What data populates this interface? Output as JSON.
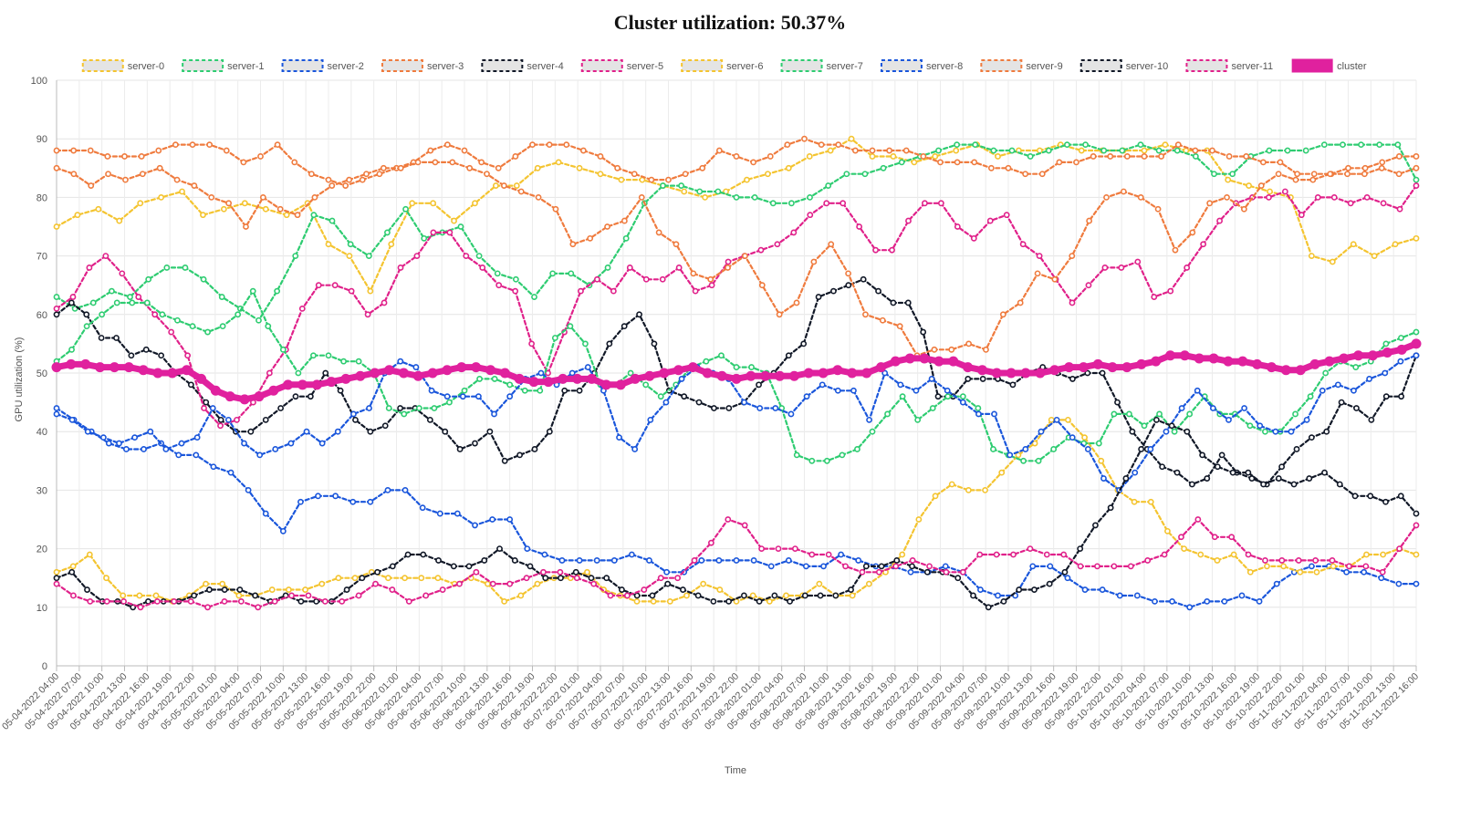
{
  "chart_data": {
    "type": "line",
    "title": "Cluster utilization: 50.37%",
    "xlabel": "Time",
    "ylabel": "GPU utilization (%)",
    "ylim": [
      0,
      100
    ],
    "yticks": [
      0,
      10,
      20,
      30,
      40,
      50,
      60,
      70,
      80,
      90,
      100
    ],
    "grid": true,
    "legend_position": "top",
    "x_tick_labels": [
      "05-04-2022 04:00",
      "05-04-2022 07:00",
      "05-04-2022 10:00",
      "05-04-2022 13:00",
      "05-04-2022 16:00",
      "05-04-2022 19:00",
      "05-04-2022 22:00",
      "05-05-2022 01:00",
      "05-05-2022 04:00",
      "05-05-2022 07:00",
      "05-05-2022 10:00",
      "05-05-2022 13:00",
      "05-05-2022 16:00",
      "05-05-2022 19:00",
      "05-05-2022 22:00",
      "05-06-2022 01:00",
      "05-06-2022 04:00",
      "05-06-2022 07:00",
      "05-06-2022 10:00",
      "05-06-2022 13:00",
      "05-06-2022 16:00",
      "05-06-2022 19:00",
      "05-06-2022 22:00",
      "05-07-2022 01:00",
      "05-07-2022 04:00",
      "05-07-2022 07:00",
      "05-07-2022 10:00",
      "05-07-2022 13:00",
      "05-07-2022 16:00",
      "05-07-2022 19:00",
      "05-07-2022 22:00",
      "05-08-2022 01:00",
      "05-08-2022 04:00",
      "05-08-2022 07:00",
      "05-08-2022 10:00",
      "05-08-2022 13:00",
      "05-08-2022 16:00",
      "05-08-2022 19:00",
      "05-08-2022 22:00",
      "05-09-2022 01:00",
      "05-09-2022 04:00",
      "05-09-2022 07:00",
      "05-09-2022 10:00",
      "05-09-2022 13:00",
      "05-09-2022 16:00",
      "05-09-2022 19:00",
      "05-09-2022 22:00",
      "05-10-2022 01:00",
      "05-10-2022 04:00",
      "05-10-2022 07:00",
      "05-10-2022 10:00",
      "05-10-2022 13:00",
      "05-10-2022 16:00",
      "05-10-2022 19:00",
      "05-10-2022 22:00",
      "05-11-2022 01:00",
      "05-11-2022 04:00",
      "05-11-2022 07:00",
      "05-11-2022 10:00",
      "05-11-2022 13:00",
      "05-11-2022 16:00"
    ],
    "series": [
      {
        "name": "server-0",
        "color": "#f4c430",
        "values": [
          75,
          77,
          78,
          76,
          79,
          80,
          81,
          77,
          78,
          79,
          78,
          77,
          79,
          72,
          70,
          64,
          72,
          79,
          79,
          76,
          79,
          82,
          82,
          85,
          86,
          85,
          84,
          83,
          83,
          82,
          81,
          80,
          81,
          83,
          84,
          85,
          87,
          88,
          90,
          87,
          87,
          86,
          87,
          88,
          89,
          87,
          88,
          88,
          89,
          88,
          88,
          88,
          88,
          89,
          88,
          88,
          83,
          82,
          81,
          80,
          70,
          69,
          72,
          70,
          72,
          73
        ]
      },
      {
        "name": "server-1",
        "color": "#2ecc71",
        "values": [
          63,
          61,
          62,
          64,
          63,
          66,
          68,
          68,
          66,
          63,
          61,
          59,
          64,
          70,
          77,
          76,
          72,
          70,
          74,
          78,
          73,
          74,
          75,
          70,
          67,
          66,
          63,
          67,
          67,
          65,
          68,
          73,
          79,
          82,
          82,
          81,
          81,
          80,
          80,
          79,
          79,
          80,
          82,
          84,
          84,
          85,
          86,
          87,
          88,
          89,
          89,
          88,
          88,
          87,
          88,
          89,
          89,
          88,
          88,
          89,
          88,
          88,
          87,
          84,
          84,
          87,
          88,
          88,
          88,
          89,
          89,
          89,
          89,
          89,
          83
        ]
      },
      {
        "name": "server-2",
        "color": "#1a56db",
        "values": [
          44,
          42,
          40,
          38,
          37,
          37,
          38,
          36,
          36,
          34,
          33,
          30,
          26,
          23,
          28,
          29,
          29,
          28,
          28,
          30,
          30,
          27,
          26,
          26,
          24,
          25,
          25,
          20,
          19,
          18,
          18,
          18,
          18,
          19,
          18,
          16,
          16,
          18,
          18,
          18,
          18,
          17,
          18,
          17,
          17,
          19,
          18,
          17,
          17,
          16,
          16,
          17,
          16,
          13,
          12,
          12,
          17,
          17,
          15,
          13,
          13,
          12,
          12,
          11,
          11,
          10,
          11,
          11,
          12,
          11,
          14,
          16,
          17,
          17,
          16,
          16,
          15,
          14,
          14
        ]
      },
      {
        "name": "server-3",
        "color": "#ef7b3e",
        "values": [
          88,
          88,
          88,
          87,
          87,
          87,
          88,
          89,
          89,
          89,
          88,
          86,
          87,
          89,
          86,
          84,
          83,
          82,
          83,
          84,
          85,
          86,
          88,
          89,
          88,
          86,
          85,
          87,
          89,
          89,
          89,
          88,
          87,
          85,
          84,
          83,
          83,
          84,
          85,
          88,
          87,
          86,
          87,
          89,
          90,
          89,
          89,
          88,
          88,
          88,
          88,
          87,
          86,
          86,
          86,
          85,
          85,
          84,
          84,
          86,
          86,
          87,
          87,
          87,
          87,
          87,
          89,
          88,
          88,
          87,
          87,
          86,
          86,
          84,
          84,
          84,
          85,
          85,
          86,
          87,
          87
        ]
      },
      {
        "name": "server-4",
        "color": "#111827",
        "values": [
          60,
          62,
          60,
          56,
          56,
          53,
          54,
          53,
          50,
          48,
          45,
          42,
          40,
          40,
          42,
          44,
          46,
          46,
          50,
          47,
          42,
          40,
          41,
          44,
          44,
          42,
          40,
          37,
          38,
          40,
          35,
          36,
          37,
          40,
          47,
          47,
          50,
          55,
          58,
          60,
          55,
          47,
          46,
          45,
          44,
          44,
          45,
          48,
          50,
          53,
          55,
          63,
          64,
          65,
          66,
          64,
          62,
          62,
          57,
          46,
          46,
          49,
          49,
          49,
          48,
          50,
          51,
          50,
          49,
          50,
          50,
          45,
          40,
          37,
          34,
          33,
          31,
          32,
          36,
          33,
          32,
          31,
          34,
          37,
          39,
          40,
          45,
          44,
          42,
          46,
          46,
          53
        ]
      },
      {
        "name": "server-5",
        "color": "#e0218a",
        "values": [
          61,
          63,
          68,
          70,
          67,
          63,
          60,
          57,
          53,
          44,
          41,
          42,
          45,
          50,
          54,
          61,
          65,
          65,
          64,
          60,
          62,
          68,
          70,
          74,
          74,
          70,
          68,
          65,
          64,
          55,
          50,
          57,
          64,
          66,
          64,
          68,
          66,
          66,
          68,
          64,
          65,
          69,
          70,
          71,
          72,
          74,
          77,
          79,
          79,
          75,
          71,
          71,
          76,
          79,
          79,
          75,
          73,
          76,
          77,
          72,
          70,
          66,
          62,
          65,
          68,
          68,
          69,
          63,
          64,
          68,
          72,
          76,
          79,
          80,
          80,
          81,
          77,
          80,
          80,
          79,
          80,
          79,
          78,
          82
        ]
      },
      {
        "name": "server-6",
        "color": "#f4c430",
        "values": [
          16,
          17,
          19,
          15,
          12,
          12,
          12,
          11,
          12,
          14,
          14,
          12,
          12,
          13,
          13,
          13,
          14,
          15,
          15,
          16,
          15,
          15,
          15,
          15,
          14,
          15,
          14,
          11,
          12,
          14,
          15,
          15,
          16,
          13,
          12,
          11,
          11,
          11,
          12,
          14,
          13,
          11,
          12,
          11,
          12,
          12,
          14,
          12,
          12,
          14,
          16,
          19,
          25,
          29,
          31,
          30,
          30,
          33,
          36,
          38,
          42,
          42,
          39,
          35,
          30,
          28,
          28,
          23,
          20,
          19,
          18,
          19,
          16,
          17,
          17,
          16,
          16,
          17,
          17,
          19,
          19,
          20,
          19
        ]
      },
      {
        "name": "server-7",
        "color": "#2ecc71",
        "values": [
          52,
          54,
          58,
          60,
          62,
          62,
          62,
          60,
          59,
          58,
          57,
          58,
          60,
          64,
          58,
          54,
          50,
          53,
          53,
          52,
          52,
          50,
          44,
          43,
          44,
          44,
          45,
          47,
          49,
          49,
          48,
          47,
          47,
          56,
          58,
          55,
          48,
          48,
          50,
          48,
          46,
          48,
          51,
          52,
          53,
          51,
          51,
          50,
          44,
          36,
          35,
          35,
          36,
          37,
          40,
          43,
          46,
          42,
          44,
          46,
          46,
          44,
          37,
          36,
          35,
          35,
          37,
          39,
          38,
          38,
          43,
          43,
          41,
          43,
          40,
          43,
          46,
          43,
          43,
          41,
          40,
          40,
          43,
          46,
          50,
          52,
          51,
          52,
          55,
          56,
          57
        ]
      },
      {
        "name": "server-8",
        "color": "#1a56db",
        "values": [
          43,
          42,
          40,
          39,
          38,
          39,
          40,
          37,
          38,
          39,
          44,
          42,
          38,
          36,
          37,
          38,
          40,
          38,
          40,
          43,
          44,
          50,
          52,
          51,
          47,
          46,
          46,
          46,
          43,
          46,
          49,
          50,
          48,
          50,
          51,
          47,
          39,
          37,
          42,
          45,
          49,
          51,
          50,
          49,
          45,
          44,
          44,
          43,
          46,
          48,
          47,
          47,
          42,
          50,
          48,
          47,
          49,
          47,
          45,
          43,
          43,
          36,
          37,
          40,
          42,
          39,
          37,
          32,
          30,
          33,
          37,
          40,
          44,
          47,
          44,
          42,
          44,
          41,
          40,
          40,
          42,
          47,
          48,
          47,
          49,
          50,
          52,
          53
        ]
      },
      {
        "name": "server-9",
        "color": "#ef7b3e",
        "values": [
          85,
          84,
          82,
          84,
          83,
          84,
          85,
          83,
          82,
          80,
          79,
          75,
          80,
          78,
          77,
          80,
          82,
          83,
          84,
          85,
          85,
          86,
          86,
          86,
          85,
          84,
          82,
          81,
          80,
          78,
          72,
          73,
          75,
          76,
          80,
          74,
          72,
          67,
          66,
          68,
          70,
          65,
          60,
          62,
          69,
          72,
          67,
          60,
          59,
          58,
          53,
          54,
          54,
          55,
          54,
          60,
          62,
          67,
          66,
          70,
          76,
          80,
          81,
          80,
          78,
          71,
          74,
          79,
          80,
          78,
          82,
          84,
          83,
          83,
          84,
          84,
          84,
          85,
          84,
          85
        ]
      },
      {
        "name": "server-10",
        "color": "#111827",
        "values": [
          15,
          16,
          13,
          11,
          11,
          10,
          11,
          11,
          11,
          12,
          13,
          13,
          13,
          12,
          11,
          12,
          11,
          11,
          11,
          13,
          15,
          16,
          17,
          19,
          19,
          18,
          17,
          17,
          18,
          20,
          18,
          17,
          15,
          15,
          16,
          15,
          15,
          13,
          12,
          12,
          14,
          13,
          12,
          11,
          11,
          12,
          11,
          12,
          11,
          12,
          12,
          12,
          13,
          17,
          17,
          18,
          17,
          16,
          16,
          15,
          12,
          10,
          11,
          13,
          13,
          14,
          16,
          20,
          24,
          27,
          32,
          37,
          42,
          41,
          40,
          36,
          34,
          33,
          33,
          31,
          32,
          31,
          32,
          33,
          31,
          29,
          29,
          28,
          29,
          26
        ]
      },
      {
        "name": "server-11",
        "color": "#e0218a",
        "values": [
          14,
          12,
          11,
          11,
          11,
          10,
          11,
          11,
          11,
          10,
          11,
          11,
          10,
          11,
          12,
          12,
          11,
          11,
          12,
          14,
          13,
          11,
          12,
          13,
          14,
          16,
          14,
          14,
          15,
          16,
          16,
          15,
          14,
          12,
          12,
          13,
          15,
          15,
          18,
          21,
          25,
          24,
          20,
          20,
          20,
          19,
          19,
          17,
          16,
          16,
          17,
          18,
          17,
          16,
          16,
          19,
          19,
          19,
          20,
          19,
          19,
          17,
          17,
          17,
          17,
          18,
          19,
          22,
          25,
          22,
          22,
          19,
          18,
          18,
          18,
          18,
          18,
          17,
          17,
          16,
          20,
          24
        ]
      },
      {
        "name": "cluster",
        "color": "#e0219e",
        "values": [
          51,
          51.5,
          51.5,
          51,
          51,
          51,
          50.5,
          50,
          50,
          50.5,
          49,
          47,
          46,
          45.5,
          46,
          47,
          48,
          48,
          48,
          48.5,
          49,
          49.5,
          50,
          50.5,
          50,
          49.5,
          50,
          50.5,
          51,
          51,
          50.5,
          50,
          49,
          48.5,
          48.5,
          49,
          49,
          49,
          48,
          48,
          49,
          49.5,
          50,
          50.5,
          51,
          50,
          49.5,
          49,
          49.5,
          49.5,
          49.5,
          49.5,
          50,
          50,
          50.5,
          50,
          50,
          51,
          52,
          52.5,
          52.5,
          52,
          52,
          51,
          50.5,
          50,
          50,
          50,
          50,
          50.5,
          51,
          51,
          51.5,
          51,
          51,
          51.5,
          52,
          53,
          53,
          52.5,
          52.5,
          52,
          52,
          51.5,
          51,
          50.5,
          50.5,
          51.5,
          52,
          52.5,
          53,
          53,
          53.5,
          54,
          55
        ]
      }
    ]
  }
}
